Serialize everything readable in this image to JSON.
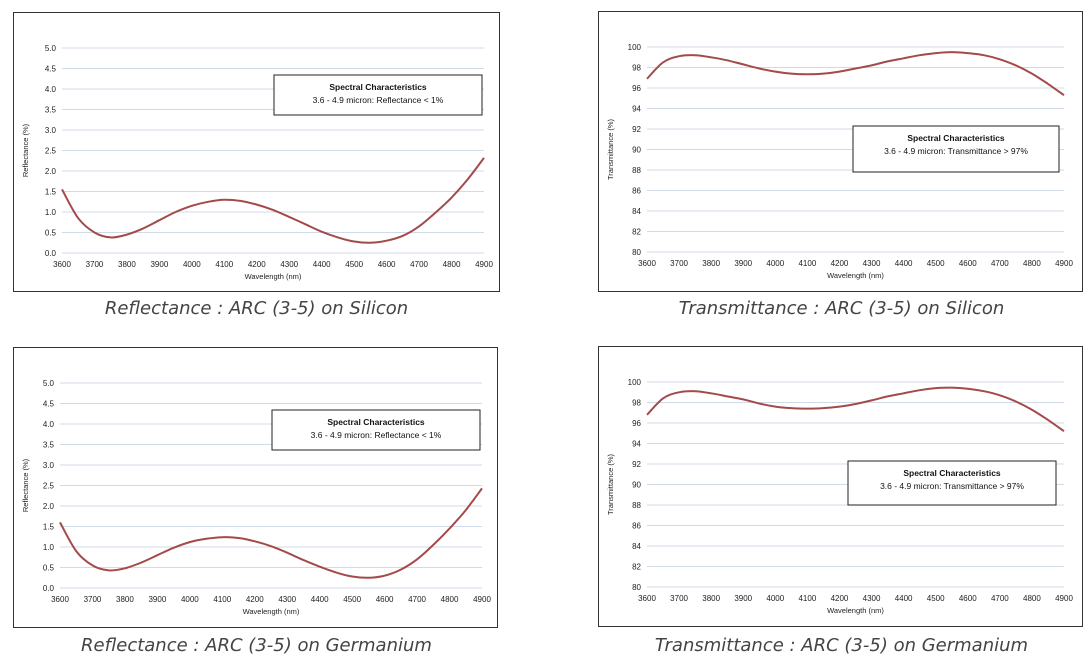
{
  "colors": {
    "curve": "#a34a4a",
    "grid": "#cfdbe6",
    "frame": "#333333"
  },
  "chart_data": [
    {
      "type": "line",
      "caption": "Reflectance : ARC (3-5) on Silicon",
      "xlabel": "Wavelength (nm)",
      "ylabel": "Reflectance (%)",
      "xlim": [
        3600,
        4900
      ],
      "ylim": [
        0,
        5
      ],
      "xticks": [
        "3600",
        "3700",
        "3800",
        "3900",
        "4000",
        "4100",
        "4200",
        "4300",
        "4400",
        "4500",
        "4600",
        "4700",
        "4800",
        "4900"
      ],
      "yticks": [
        "0.0",
        "0.5",
        "1.0",
        "1.5",
        "2.0",
        "2.5",
        "3.0",
        "3.5",
        "4.0",
        "4.5",
        "5.0"
      ],
      "annotation": {
        "title": "Spectral Characteristics",
        "text": "3.6 - 4.9 micron: Reflectance < 1%",
        "placement": "top-right"
      },
      "grid": true,
      "series": [
        {
          "x": [
            3600,
            3650,
            3700,
            3750,
            3800,
            3850,
            3900,
            3950,
            4000,
            4050,
            4100,
            4150,
            4200,
            4250,
            4300,
            4350,
            4400,
            4450,
            4500,
            4550,
            4600,
            4650,
            4700,
            4750,
            4800,
            4850,
            4900
          ],
          "y": [
            1.55,
            0.85,
            0.5,
            0.38,
            0.45,
            0.6,
            0.8,
            1.0,
            1.15,
            1.25,
            1.3,
            1.27,
            1.18,
            1.05,
            0.88,
            0.7,
            0.52,
            0.38,
            0.28,
            0.25,
            0.3,
            0.42,
            0.65,
            0.98,
            1.35,
            1.8,
            2.32
          ]
        }
      ]
    },
    {
      "type": "line",
      "caption": "Transmittance : ARC (3-5) on Silicon",
      "xlabel": "Wavelength (nm)",
      "ylabel": "Transmittance (%)",
      "xlim": [
        3600,
        4900
      ],
      "ylim": [
        80,
        100
      ],
      "xticks": [
        "3600",
        "3700",
        "3800",
        "3900",
        "4000",
        "4100",
        "4200",
        "4300",
        "4400",
        "4500",
        "4600",
        "4700",
        "4800",
        "4900"
      ],
      "yticks": [
        "80",
        "82",
        "84",
        "86",
        "88",
        "90",
        "92",
        "94",
        "96",
        "98",
        "100"
      ],
      "annotation": {
        "title": "Spectral Characteristics",
        "text": "3.6 - 4.9 micron: Transmittance > 97%",
        "placement": "center-right"
      },
      "grid": true,
      "series": [
        {
          "x": [
            3600,
            3650,
            3700,
            3750,
            3800,
            3850,
            3900,
            3950,
            4000,
            4050,
            4100,
            4150,
            4200,
            4250,
            4300,
            4350,
            4400,
            4450,
            4500,
            4550,
            4600,
            4650,
            4700,
            4750,
            4800,
            4850,
            4900
          ],
          "y": [
            96.9,
            98.5,
            99.1,
            99.2,
            99.0,
            98.7,
            98.3,
            97.9,
            97.6,
            97.4,
            97.35,
            97.4,
            97.6,
            97.9,
            98.2,
            98.6,
            98.9,
            99.2,
            99.4,
            99.5,
            99.4,
            99.2,
            98.8,
            98.2,
            97.4,
            96.4,
            95.3
          ]
        }
      ]
    },
    {
      "type": "line",
      "caption": "Reflectance : ARC (3-5) on Germanium",
      "xlabel": "Wavelength (nm)",
      "ylabel": "Reflectance (%)",
      "xlim": [
        3600,
        4900
      ],
      "ylim": [
        0,
        5
      ],
      "xticks": [
        "3600",
        "3700",
        "3800",
        "3900",
        "4000",
        "4100",
        "4200",
        "4300",
        "4400",
        "4500",
        "4600",
        "4700",
        "4800",
        "4900"
      ],
      "yticks": [
        "0.0",
        "0.5",
        "1.0",
        "1.5",
        "2.0",
        "2.5",
        "3.0",
        "3.5",
        "4.0",
        "4.5",
        "5.0"
      ],
      "annotation": {
        "title": "Spectral Characteristics",
        "text": "3.6 - 4.9 micron: Reflectance < 1%",
        "placement": "top-right"
      },
      "grid": true,
      "series": [
        {
          "x": [
            3600,
            3650,
            3700,
            3750,
            3800,
            3850,
            3900,
            3950,
            4000,
            4050,
            4100,
            4150,
            4200,
            4250,
            4300,
            4350,
            4400,
            4450,
            4500,
            4550,
            4600,
            4650,
            4700,
            4750,
            4800,
            4850,
            4900
          ],
          "y": [
            1.6,
            0.9,
            0.55,
            0.43,
            0.48,
            0.62,
            0.8,
            0.98,
            1.12,
            1.2,
            1.24,
            1.22,
            1.14,
            1.02,
            0.86,
            0.68,
            0.52,
            0.38,
            0.28,
            0.25,
            0.3,
            0.45,
            0.7,
            1.05,
            1.45,
            1.9,
            2.43
          ]
        }
      ]
    },
    {
      "type": "line",
      "caption": "Transmittance : ARC (3-5) on Germanium",
      "xlabel": "Wavelength (nm)",
      "ylabel": "Transmittance (%)",
      "xlim": [
        3600,
        4900
      ],
      "ylim": [
        80,
        100
      ],
      "xticks": [
        "3600",
        "3700",
        "3800",
        "3900",
        "4000",
        "4100",
        "4200",
        "4300",
        "4400",
        "4500",
        "4600",
        "4700",
        "4800",
        "4900"
      ],
      "yticks": [
        "80",
        "82",
        "84",
        "86",
        "88",
        "90",
        "92",
        "94",
        "96",
        "98",
        "100"
      ],
      "annotation": {
        "title": "Spectral Characteristics",
        "text": "3.6 - 4.9 micron: Transmittance > 97%",
        "placement": "center-right"
      },
      "grid": true,
      "series": [
        {
          "x": [
            3600,
            3650,
            3700,
            3750,
            3800,
            3850,
            3900,
            3950,
            4000,
            4050,
            4100,
            4150,
            4200,
            4250,
            4300,
            4350,
            4400,
            4450,
            4500,
            4550,
            4600,
            4650,
            4700,
            4750,
            4800,
            4850,
            4900
          ],
          "y": [
            96.8,
            98.4,
            99.0,
            99.1,
            98.9,
            98.6,
            98.3,
            97.9,
            97.6,
            97.45,
            97.4,
            97.45,
            97.6,
            97.85,
            98.2,
            98.6,
            98.9,
            99.2,
            99.4,
            99.45,
            99.35,
            99.1,
            98.7,
            98.1,
            97.3,
            96.3,
            95.2
          ]
        }
      ]
    }
  ]
}
